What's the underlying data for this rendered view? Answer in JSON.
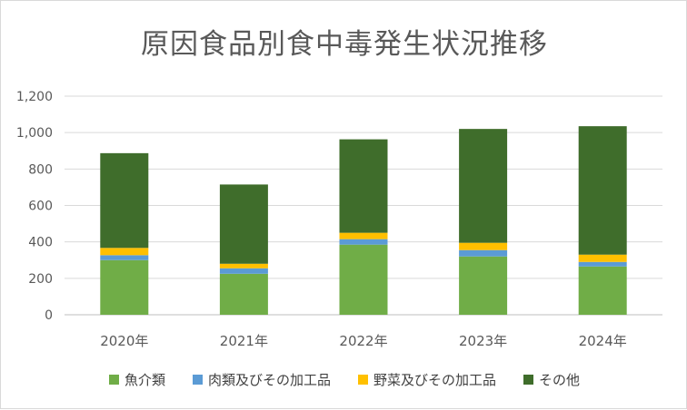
{
  "chart_data": {
    "type": "bar",
    "stacked": true,
    "title": "原因食品別食中毒発生状況推移",
    "xlabel": "",
    "ylabel": "",
    "ylim": [
      0,
      1200
    ],
    "y_ticks": [
      "0",
      "200",
      "400",
      "600",
      "800",
      "1,000",
      "1,200"
    ],
    "categories": [
      "2020年",
      "2021年",
      "2022年",
      "2023年",
      "2024年"
    ],
    "series": [
      {
        "name": "魚介類",
        "color": "#70ad47",
        "values": [
          300,
          225,
          385,
          320,
          265
        ]
      },
      {
        "name": "肉類及びその加工品",
        "color": "#5b9bd5",
        "values": [
          27,
          30,
          30,
          35,
          25
        ]
      },
      {
        "name": "野菜及びその加工品",
        "color": "#ffc000",
        "values": [
          40,
          25,
          35,
          40,
          40
        ]
      },
      {
        "name": "その他",
        "color": "#3f6d2b",
        "values": [
          520,
          435,
          513,
          625,
          705
        ]
      }
    ],
    "grid": true,
    "legend_position": "bottom"
  }
}
